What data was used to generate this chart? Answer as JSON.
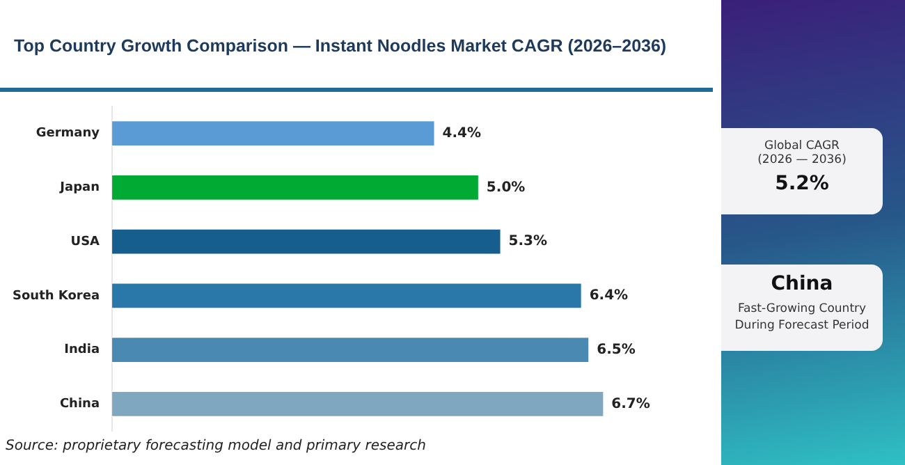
{
  "chart_data": {
    "type": "bar",
    "orientation": "horizontal",
    "title": "Top Country Growth Comparison — Instant Noodles Market CAGR (2026–2036)",
    "categories": [
      "Germany",
      "Japan",
      "USA",
      "South Korea",
      "India",
      "China"
    ],
    "values": [
      4.4,
      5.0,
      5.3,
      6.4,
      6.5,
      6.7
    ],
    "colors": [
      "#5b9bd5",
      "#00aa33",
      "#165e8e",
      "#2a78aa",
      "#4a8ab2",
      "#7fa7c0"
    ],
    "value_labels": [
      "4.4%",
      "5.0%",
      "5.3%",
      "6.4%",
      "6.5%",
      "6.7%"
    ],
    "tick_labels": "y",
    "grid": false,
    "annotations": [
      "Source: proprietary forecasting model and primary research",
      "Global CAGR",
      "(2026 — 2036)",
      "5.2%",
      "China",
      "Fast-Growing Country During Forecast Period"
    ]
  }
}
